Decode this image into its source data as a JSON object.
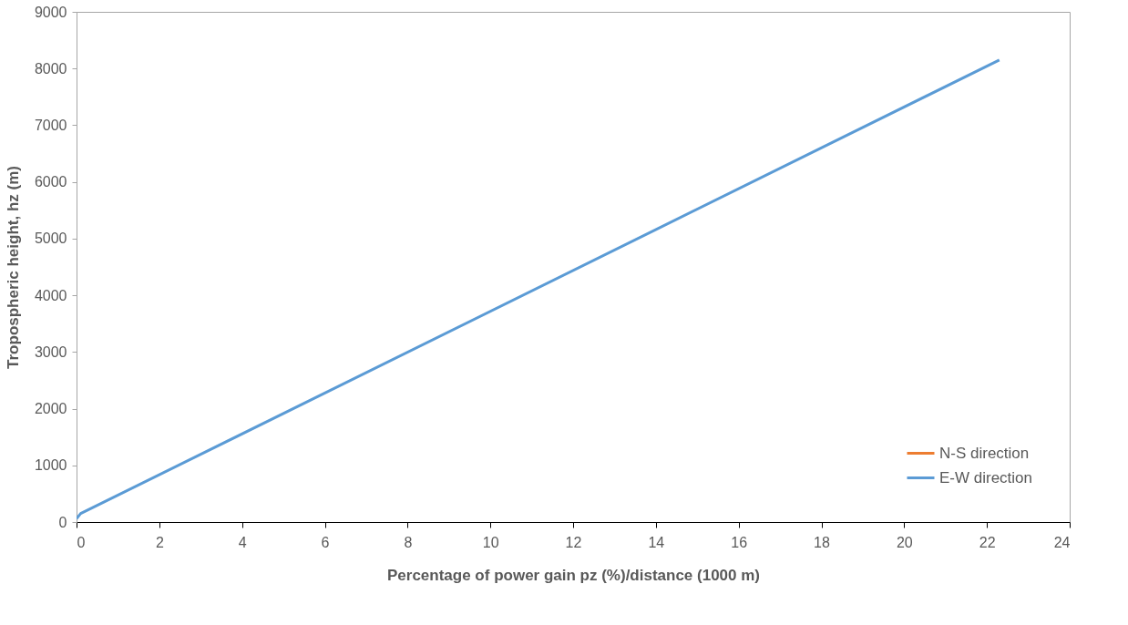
{
  "chart_data": {
    "type": "line",
    "xlabel": "Percentage of power gain pz (%)/distance (1000 m)",
    "ylabel": "Tropospheric height, hz (m)",
    "series": [
      {
        "name": "N-S direction",
        "color": "#ed7d31",
        "values": [
          null
        ]
      },
      {
        "name": "E-W direction",
        "color": "#5b9bd5",
        "x": [
          0,
          0.1,
          22.3
        ],
        "values": [
          60,
          150,
          8150
        ]
      }
    ],
    "xlim": [
      0,
      24
    ],
    "xticks": [
      0,
      2,
      4,
      6,
      8,
      10,
      12,
      14,
      16,
      18,
      20,
      22,
      24
    ],
    "ylim": [
      0,
      9000
    ],
    "yticks": [
      0,
      1000,
      2000,
      3000,
      4000,
      5000,
      6000,
      7000,
      8000,
      9000
    ],
    "grid": false,
    "legend": "bottom right",
    "line_style": "solid",
    "marker": "none"
  }
}
